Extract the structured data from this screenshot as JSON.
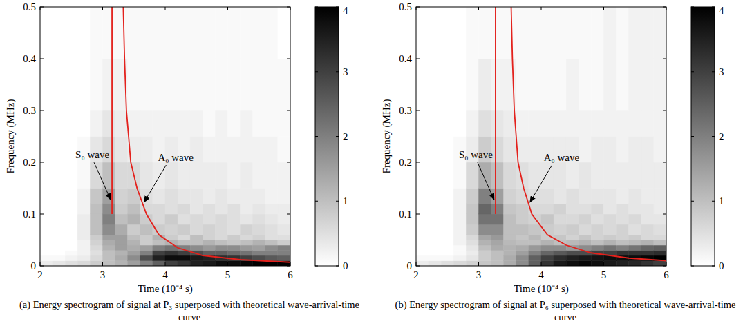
{
  "chart_data": [
    {
      "type": "heatmap",
      "title": "(a) Energy spectrogram of signal at P₃ superposed with theoretical wave-arrival-time curve",
      "xlabel": "Time (10⁻⁴ s)",
      "ylabel": "Frequency (MHz)",
      "xlim": [
        2,
        6
      ],
      "xticks": [
        2,
        3,
        4,
        5,
        6
      ],
      "ylim": [
        0,
        0.5
      ],
      "yticks": [
        0,
        0.1,
        0.2,
        0.3,
        0.4,
        0.5
      ],
      "x_edges": [
        2,
        2.2,
        2.4,
        2.6,
        2.8,
        3,
        3.2,
        3.4,
        3.6,
        3.8,
        4,
        4.2,
        4.4,
        4.6,
        4.8,
        5,
        5.2,
        5.4,
        5.6,
        5.8,
        6
      ],
      "y_edges": [
        0,
        0.01,
        0.02,
        0.03,
        0.04,
        0.05,
        0.06,
        0.08,
        0.1,
        0.12,
        0.15,
        0.2,
        0.25,
        0.3,
        0.4,
        0.5
      ],
      "cells": [
        [
          0.3,
          0.4,
          0.5,
          0.6,
          0.8,
          1.0,
          1.2,
          1.5,
          2.0,
          2.5,
          3.0,
          3.2,
          3.5,
          3.6,
          3.8,
          3.8,
          3.9,
          4,
          4,
          4
        ],
        [
          0.1,
          0.1,
          0.2,
          0.3,
          0.6,
          1.0,
          1.3,
          1.8,
          2.8,
          3.5,
          3.8,
          3.8,
          3.6,
          3.5,
          3.3,
          3.2,
          3.0,
          2.8,
          2.6,
          2.5
        ],
        [
          0,
          0,
          0.1,
          0.2,
          0.5,
          1.0,
          1.2,
          1.5,
          2.0,
          3.0,
          3.2,
          3.0,
          2.8,
          2.5,
          2.5,
          2.3,
          2.2,
          2.0,
          2.0,
          2.0
        ],
        [
          0,
          0,
          0,
          0.2,
          0.6,
          1.2,
          1.5,
          1.3,
          1.5,
          2.0,
          2.2,
          2.0,
          1.8,
          1.6,
          1.8,
          1.8,
          1.6,
          1.5,
          1.8,
          2.0
        ],
        [
          0,
          0,
          0,
          0.2,
          0.7,
          1.3,
          1.5,
          1.2,
          0.8,
          1.0,
          1.2,
          1.0,
          1.0,
          1.2,
          1.0,
          0.9,
          1.0,
          1.2,
          1.0,
          0.8
        ],
        [
          0,
          0,
          0,
          0.3,
          0.8,
          1.5,
          1.5,
          1.0,
          0.8,
          1.2,
          0.8,
          0.6,
          1.0,
          0.7,
          0.6,
          0.8,
          0.6,
          0.7,
          0.5,
          0.5
        ],
        [
          0,
          0,
          0,
          0.3,
          1.0,
          1.8,
          1.3,
          0.8,
          1.0,
          0.8,
          0.7,
          0.8,
          0.6,
          0.7,
          0.6,
          0.5,
          0.7,
          0.6,
          0.5,
          0.4
        ],
        [
          0,
          0,
          0,
          0.3,
          1.0,
          2.0,
          1.0,
          1.2,
          0.8,
          0.6,
          0.8,
          0.5,
          0.6,
          0.5,
          0.6,
          0.5,
          0.4,
          0.5,
          0.4,
          0.3
        ],
        [
          0,
          0,
          0,
          0.2,
          1.0,
          1.8,
          0.8,
          1.0,
          0.6,
          0.6,
          0.5,
          0.6,
          0.4,
          0.5,
          0.4,
          0.5,
          0.3,
          0.4,
          0.3,
          0.3
        ],
        [
          0,
          0,
          0,
          0.2,
          0.9,
          1.5,
          0.7,
          0.8,
          0.5,
          0.4,
          0.5,
          0.4,
          0.4,
          0.3,
          0.4,
          0.3,
          0.3,
          0.3,
          0.2,
          0.2
        ],
        [
          0,
          0,
          0,
          0.1,
          0.6,
          1.0,
          0.6,
          0.6,
          0.4,
          0.3,
          0.4,
          0.3,
          0.3,
          0.3,
          0.3,
          0.2,
          0.3,
          0.2,
          0.2,
          0.2
        ],
        [
          0,
          0,
          0,
          0.1,
          0.4,
          0.6,
          0.4,
          0.3,
          0.3,
          0.2,
          0.3,
          0.2,
          0.3,
          0.2,
          0.2,
          0.2,
          0.2,
          0.2,
          0.2,
          0.1
        ],
        [
          0,
          0,
          0,
          0,
          0.2,
          0.4,
          0.3,
          0.2,
          0.2,
          0.2,
          0.2,
          0.2,
          0.2,
          0.1,
          0.2,
          0.1,
          0.2,
          0.1,
          0.1,
          0.1
        ],
        [
          0,
          0,
          0,
          0,
          0.1,
          0.2,
          0.2,
          0.1,
          0.1,
          0.1,
          0.1,
          0.1,
          0.1,
          0.1,
          0.1,
          0.1,
          0.1,
          0.1,
          0.1,
          0.1
        ],
        [
          0,
          0,
          0,
          0,
          0.1,
          0.1,
          0.1,
          0.1,
          0.1,
          0.1,
          0.1,
          0.1,
          0.1,
          0.1,
          0.1,
          0.1,
          0.1,
          0.1,
          0.1,
          0
        ]
      ],
      "colorbar": {
        "range": [
          0,
          4
        ],
        "ticks": [
          0,
          1,
          2,
          3,
          4
        ]
      },
      "series": [
        {
          "name": "S₀ wave",
          "type": "line",
          "color": "#e3211c",
          "x": [
            3.15,
            3.15
          ],
          "values": [
            0.1,
            0.5
          ]
        },
        {
          "name": "A₀ wave",
          "type": "line",
          "color": "#e3211c",
          "x": [
            3.33,
            3.35,
            3.38,
            3.45,
            3.55,
            3.7,
            3.9,
            4.2,
            4.6,
            5.2,
            6
          ],
          "values": [
            0.5,
            0.4,
            0.3,
            0.2,
            0.15,
            0.1,
            0.06,
            0.035,
            0.02,
            0.012,
            0.007
          ]
        }
      ]
    },
    {
      "type": "heatmap",
      "title": "(b) Energy spectrogram of signal at P₆ superposed with theoretical wave-arrival-time curve",
      "xlabel": "Time (10⁻⁴ s)",
      "ylabel": "Frequency (MHz)",
      "xlim": [
        2,
        6
      ],
      "xticks": [
        2,
        3,
        4,
        5,
        6
      ],
      "ylim": [
        0,
        0.5
      ],
      "yticks": [
        0,
        0.1,
        0.2,
        0.3,
        0.4,
        0.5
      ],
      "x_edges": [
        2,
        2.2,
        2.4,
        2.6,
        2.8,
        3,
        3.2,
        3.4,
        3.6,
        3.8,
        4,
        4.2,
        4.4,
        4.6,
        4.8,
        5,
        5.2,
        5.4,
        5.6,
        5.8,
        6
      ],
      "y_edges": [
        0,
        0.01,
        0.02,
        0.03,
        0.04,
        0.05,
        0.06,
        0.08,
        0.1,
        0.12,
        0.15,
        0.2,
        0.25,
        0.3,
        0.4,
        0.5
      ],
      "cells": [
        [
          0.3,
          0.4,
          0.5,
          0.6,
          0.7,
          0.9,
          1.0,
          1.3,
          1.8,
          2.5,
          3.2,
          3.6,
          3.8,
          3.9,
          3.8,
          3.6,
          3.5,
          3.4,
          3.2,
          3.0
        ],
        [
          0.1,
          0.1,
          0.1,
          0.2,
          0.4,
          0.8,
          1.0,
          1.3,
          1.8,
          2.5,
          3.0,
          3.3,
          3.5,
          3.6,
          3.7,
          3.8,
          3.8,
          3.8,
          3.9,
          4.0
        ],
        [
          0,
          0,
          0,
          0.1,
          0.3,
          0.8,
          1.0,
          1.2,
          1.5,
          2.0,
          2.4,
          2.6,
          2.8,
          2.8,
          3.0,
          3.0,
          3.2,
          3.2,
          3.2,
          3.3
        ],
        [
          0,
          0,
          0,
          0.1,
          0.4,
          1.0,
          1.3,
          1.2,
          1.3,
          1.6,
          1.8,
          1.8,
          1.6,
          1.8,
          2.0,
          2.2,
          2.0,
          2.2,
          2.4,
          2.5
        ],
        [
          0,
          0,
          0,
          0.2,
          0.5,
          1.2,
          1.4,
          1.1,
          1.0,
          1.0,
          1.2,
          1.0,
          1.1,
          1.2,
          1.0,
          1.2,
          1.0,
          1.1,
          1.2,
          1.0
        ],
        [
          0,
          0,
          0,
          0.2,
          0.6,
          1.4,
          1.6,
          1.0,
          0.9,
          1.1,
          0.8,
          0.9,
          0.7,
          0.9,
          0.7,
          0.8,
          0.7,
          0.8,
          0.6,
          0.6
        ],
        [
          0,
          0,
          0,
          0.2,
          0.8,
          1.8,
          1.8,
          1.0,
          1.0,
          0.9,
          0.8,
          0.7,
          0.8,
          0.6,
          0.7,
          0.6,
          0.7,
          0.5,
          0.6,
          0.5
        ],
        [
          0,
          0,
          0,
          0.2,
          0.9,
          2.2,
          2.2,
          1.0,
          0.8,
          0.7,
          0.9,
          0.6,
          0.6,
          0.7,
          0.5,
          0.6,
          0.5,
          0.6,
          0.4,
          0.4
        ],
        [
          0,
          0,
          0,
          0.2,
          0.9,
          2.4,
          2.0,
          0.9,
          0.8,
          0.6,
          0.6,
          0.7,
          0.5,
          0.5,
          0.6,
          0.4,
          0.5,
          0.4,
          0.4,
          0.3
        ],
        [
          0,
          0,
          0,
          0.2,
          0.8,
          2.0,
          1.5,
          0.7,
          0.6,
          0.5,
          0.5,
          0.4,
          0.5,
          0.4,
          0.4,
          0.4,
          0.3,
          0.4,
          0.3,
          0.3
        ],
        [
          0,
          0,
          0,
          0.1,
          0.6,
          1.3,
          1.0,
          0.6,
          0.5,
          0.4,
          0.4,
          0.4,
          0.3,
          0.4,
          0.3,
          0.3,
          0.3,
          0.3,
          0.3,
          0.3
        ],
        [
          0,
          0,
          0,
          0.1,
          0.3,
          0.8,
          0.6,
          0.4,
          0.3,
          0.3,
          0.3,
          0.3,
          0.3,
          0.2,
          0.3,
          0.3,
          0.2,
          0.3,
          0.3,
          0.2
        ],
        [
          0,
          0,
          0,
          0,
          0.2,
          0.5,
          0.4,
          0.3,
          0.2,
          0.2,
          0.2,
          0.2,
          0.2,
          0.2,
          0.2,
          0.2,
          0.2,
          0.2,
          0.2,
          0.2
        ],
        [
          0,
          0,
          0,
          0,
          0.1,
          0.3,
          0.2,
          0.2,
          0.1,
          0.1,
          0.1,
          0.1,
          0.2,
          0.1,
          0.1,
          0.2,
          0.1,
          0.2,
          0.2,
          0.2
        ],
        [
          0,
          0,
          0,
          0,
          0.1,
          0.1,
          0.1,
          0.1,
          0.1,
          0.1,
          0.1,
          0.1,
          0.1,
          0.1,
          0.1,
          0.2,
          0.1,
          0.2,
          0.2,
          0.2
        ]
      ],
      "colorbar": {
        "range": [
          0,
          4
        ],
        "ticks": [
          0,
          1,
          2,
          3,
          4
        ]
      },
      "series": [
        {
          "name": "S₀ wave",
          "type": "line",
          "color": "#e3211c",
          "x": [
            3.27,
            3.27
          ],
          "values": [
            0.1,
            0.5
          ]
        },
        {
          "name": "A₀ wave",
          "type": "line",
          "color": "#e3211c",
          "x": [
            3.52,
            3.54,
            3.57,
            3.63,
            3.72,
            3.85,
            4.1,
            4.4,
            4.8,
            5.4,
            6
          ],
          "values": [
            0.5,
            0.4,
            0.3,
            0.2,
            0.15,
            0.1,
            0.06,
            0.04,
            0.025,
            0.015,
            0.01
          ]
        }
      ]
    }
  ]
}
